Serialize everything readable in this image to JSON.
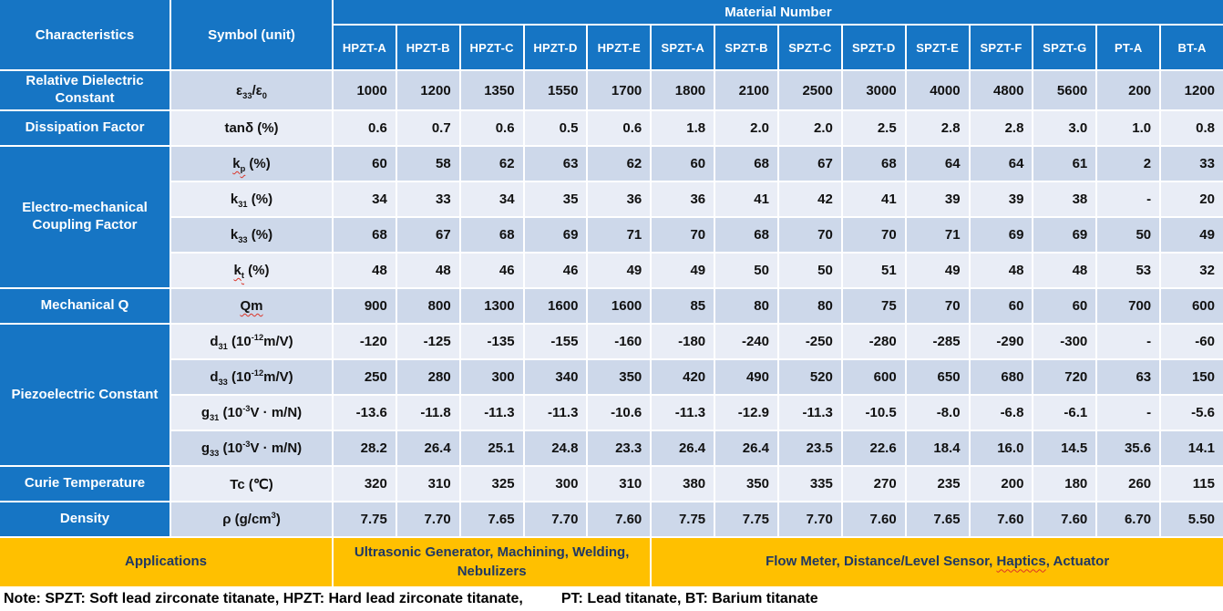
{
  "table": {
    "header": {
      "characteristics": "Characteristics",
      "symbol_unit": "Symbol (unit)",
      "material_number": "Material Number",
      "materials": [
        "HPZT-A",
        "HPZT-B",
        "HPZT-C",
        "HPZT-D",
        "HPZT-E",
        "SPZT-A",
        "SPZT-B",
        "SPZT-C",
        "SPZT-D",
        "SPZT-E",
        "SPZT-F",
        "SPZT-G",
        "PT-A",
        "BT-A"
      ]
    },
    "groups": [
      {
        "label": "Relative Dielectric Constant",
        "rows": [
          {
            "name": "e33-e0",
            "symbol": [
              {
                "t": "ε"
              },
              {
                "t": "33",
                "sub": true
              },
              {
                "t": "/ε"
              },
              {
                "t": "0",
                "sub": true
              }
            ],
            "values": [
              "1000",
              "1200",
              "1350",
              "1550",
              "1700",
              "1800",
              "2100",
              "2500",
              "3000",
              "4000",
              "4800",
              "5600",
              "200",
              "1200"
            ]
          }
        ]
      },
      {
        "label": "Dissipation Factor",
        "rows": [
          {
            "name": "tan-delta",
            "symbol": [
              {
                "t": "tanδ (%)"
              }
            ],
            "values": [
              "0.6",
              "0.7",
              "0.6",
              "0.5",
              "0.6",
              "1.8",
              "2.0",
              "2.0",
              "2.5",
              "2.8",
              "2.8",
              "3.0",
              "1.0",
              "0.8"
            ]
          }
        ]
      },
      {
        "label": "Electro-mechanical Coupling Factor",
        "rows": [
          {
            "name": "kp",
            "symbol": [
              {
                "t": "k",
                "sq": true
              },
              {
                "t": "p",
                "sub": true,
                "sq": true
              },
              {
                "t": " (%)"
              }
            ],
            "values": [
              "60",
              "58",
              "62",
              "63",
              "62",
              "60",
              "68",
              "67",
              "68",
              "64",
              "64",
              "61",
              "2",
              "33"
            ]
          },
          {
            "name": "k31",
            "symbol": [
              {
                "t": "k"
              },
              {
                "t": "31",
                "sub": true
              },
              {
                "t": " (%)"
              }
            ],
            "values": [
              "34",
              "33",
              "34",
              "35",
              "36",
              "36",
              "41",
              "42",
              "41",
              "39",
              "39",
              "38",
              "-",
              "20"
            ]
          },
          {
            "name": "k33",
            "symbol": [
              {
                "t": "k"
              },
              {
                "t": "33",
                "sub": true
              },
              {
                "t": " (%)"
              }
            ],
            "values": [
              "68",
              "67",
              "68",
              "69",
              "71",
              "70",
              "68",
              "70",
              "70",
              "71",
              "69",
              "69",
              "50",
              "49"
            ]
          },
          {
            "name": "kt",
            "symbol": [
              {
                "t": "k",
                "sq": true
              },
              {
                "t": "t",
                "sub": true,
                "sq": true
              },
              {
                "t": " (%)"
              }
            ],
            "values": [
              "48",
              "48",
              "46",
              "46",
              "49",
              "49",
              "50",
              "50",
              "51",
              "49",
              "48",
              "48",
              "53",
              "32"
            ]
          }
        ]
      },
      {
        "label": "Mechanical Q",
        "rows": [
          {
            "name": "Qm",
            "symbol": [
              {
                "t": "Qm",
                "sq": true
              }
            ],
            "values": [
              "900",
              "800",
              "1300",
              "1600",
              "1600",
              "85",
              "80",
              "80",
              "75",
              "70",
              "60",
              "60",
              "700",
              "600"
            ]
          }
        ]
      },
      {
        "label": "Piezoelectric Constant",
        "rows": [
          {
            "name": "d31",
            "symbol": [
              {
                "t": "d"
              },
              {
                "t": "31",
                "sub": true
              },
              {
                "t": " (10"
              },
              {
                "t": "-12",
                "sup": true
              },
              {
                "t": "m/V)"
              }
            ],
            "values": [
              "-120",
              "-125",
              "-135",
              "-155",
              "-160",
              "-180",
              "-240",
              "-250",
              "-280",
              "-285",
              "-290",
              "-300",
              "-",
              "-60"
            ]
          },
          {
            "name": "d33",
            "symbol": [
              {
                "t": "d"
              },
              {
                "t": "33",
                "sub": true
              },
              {
                "t": " (10"
              },
              {
                "t": "-12",
                "sup": true
              },
              {
                "t": "m/V)"
              }
            ],
            "values": [
              "250",
              "280",
              "300",
              "340",
              "350",
              "420",
              "490",
              "520",
              "600",
              "650",
              "680",
              "720",
              "63",
              "150"
            ]
          },
          {
            "name": "g31",
            "symbol": [
              {
                "t": "g"
              },
              {
                "t": "31",
                "sub": true
              },
              {
                "t": " (10"
              },
              {
                "t": "-3",
                "sup": true
              },
              {
                "t": "V · m/N)"
              }
            ],
            "values": [
              "-13.6",
              "-11.8",
              "-11.3",
              "-11.3",
              "-10.6",
              "-11.3",
              "-12.9",
              "-11.3",
              "-10.5",
              "-8.0",
              "-6.8",
              "-6.1",
              "-",
              "-5.6"
            ]
          },
          {
            "name": "g33",
            "symbol": [
              {
                "t": "g"
              },
              {
                "t": "33",
                "sub": true
              },
              {
                "t": " (10"
              },
              {
                "t": "-3",
                "sup": true
              },
              {
                "t": "V · m/N)"
              }
            ],
            "values": [
              "28.2",
              "26.4",
              "25.1",
              "24.8",
              "23.3",
              "26.4",
              "26.4",
              "23.5",
              "22.6",
              "18.4",
              "16.0",
              "14.5",
              "35.6",
              "14.1"
            ]
          }
        ]
      },
      {
        "label": "Curie Temperature",
        "rows": [
          {
            "name": "Tc",
            "symbol": [
              {
                "t": "Tc (℃)"
              }
            ],
            "values": [
              "320",
              "310",
              "325",
              "300",
              "310",
              "380",
              "350",
              "335",
              "270",
              "235",
              "200",
              "180",
              "260",
              "115"
            ]
          }
        ]
      },
      {
        "label": "Density",
        "rows": [
          {
            "name": "rho",
            "symbol": [
              {
                "t": "ρ (g/cm"
              },
              {
                "t": "3",
                "sup": true
              },
              {
                "t": ")"
              }
            ],
            "values": [
              "7.75",
              "7.70",
              "7.65",
              "7.70",
              "7.60",
              "7.75",
              "7.75",
              "7.70",
              "7.60",
              "7.65",
              "7.60",
              "7.60",
              "6.70",
              "5.50"
            ]
          }
        ]
      }
    ],
    "applications": {
      "label": "Applications",
      "hpzt": "Ultrasonic Generator, Machining, Welding, Nebulizers",
      "spzt_segments": [
        {
          "t": "Flow Meter, Distance/Level Sensor, "
        },
        {
          "t": "Haptics",
          "sq": true
        },
        {
          "t": ", Actuator"
        }
      ]
    },
    "note_left": "Note: SPZT: Soft lead zirconate titanate, HPZT: Hard lead zirconate titanate,",
    "note_right": "PT: Lead titanate, BT: Barium titanate"
  },
  "colors": {
    "header_blue": "#1675C4",
    "band_dark": "#CDD8EA",
    "band_light": "#E9EDF6",
    "applications_orange": "#FFC000",
    "applications_text": "#1F3864",
    "squiggle_red": "#DB3327"
  }
}
